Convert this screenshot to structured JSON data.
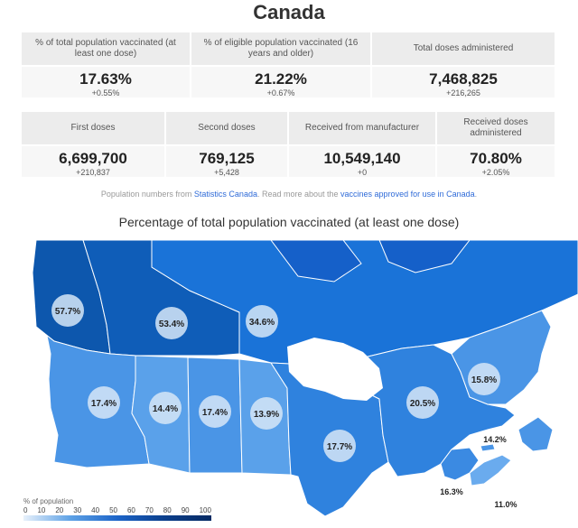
{
  "page": {
    "title": "Canada"
  },
  "stats_top": [
    {
      "label": "% of total population vaccinated (at least one dose)",
      "value": "17.63%",
      "change": "+0.55%"
    },
    {
      "label": "% of eligible population vaccinated (16 years and older)",
      "value": "21.22%",
      "change": "+0.67%"
    },
    {
      "label": "Total doses administered",
      "value": "7,468,825",
      "change": "+216,265"
    }
  ],
  "stats_bottom": [
    {
      "label": "First doses",
      "value": "6,699,700",
      "change": "+210,837"
    },
    {
      "label": "Second doses",
      "value": "769,125",
      "change": "+5,428"
    },
    {
      "label": "Received from manufacturer",
      "value": "10,549,140",
      "change": "+0"
    },
    {
      "label": "Received doses administered",
      "value": "70.80%",
      "change": "+2.05%"
    }
  ],
  "source": {
    "prefix": "Population numbers from ",
    "link1": "Statistics Canada",
    "middle": ". Read more about the ",
    "link2": "vaccines approved for use in Canada",
    "suffix": "."
  },
  "map": {
    "title": "Percentage of total population vaccinated (at least one dose)",
    "regions": [
      {
        "name": "Yukon",
        "label": "57.7%",
        "color": "#0d57ad"
      },
      {
        "name": "Northwest Territories",
        "label": "53.4%",
        "color": "#0f5db8"
      },
      {
        "name": "Nunavut",
        "label": "34.6%",
        "color": "#1a73d8"
      },
      {
        "name": "British Columbia",
        "label": "17.4%",
        "color": "#4a95e6"
      },
      {
        "name": "Alberta",
        "label": "14.4%",
        "color": "#5aa1ea"
      },
      {
        "name": "Saskatchewan",
        "label": "17.4%",
        "color": "#4a95e6"
      },
      {
        "name": "Manitoba",
        "label": "13.9%",
        "color": "#5aa1ea"
      },
      {
        "name": "Ontario",
        "label": "17.7%",
        "color": "#2f82de"
      },
      {
        "name": "Quebec",
        "label": "20.5%",
        "color": "#2f82de"
      },
      {
        "name": "Newfoundland and Labrador",
        "label": "15.8%",
        "color": "#4a95e6"
      },
      {
        "name": "New Brunswick",
        "label": "16.3%",
        "color": "#3b8ae2"
      },
      {
        "name": "Prince Edward Island",
        "label": "14.2%",
        "color": "#4a95e6"
      },
      {
        "name": "Nova Scotia",
        "label": "11.0%",
        "color": "#6aabee"
      }
    ]
  },
  "legend": {
    "title": "% of population",
    "ticks": [
      "0",
      "10",
      "20",
      "30",
      "40",
      "50",
      "60",
      "70",
      "80",
      "90",
      "100"
    ]
  }
}
